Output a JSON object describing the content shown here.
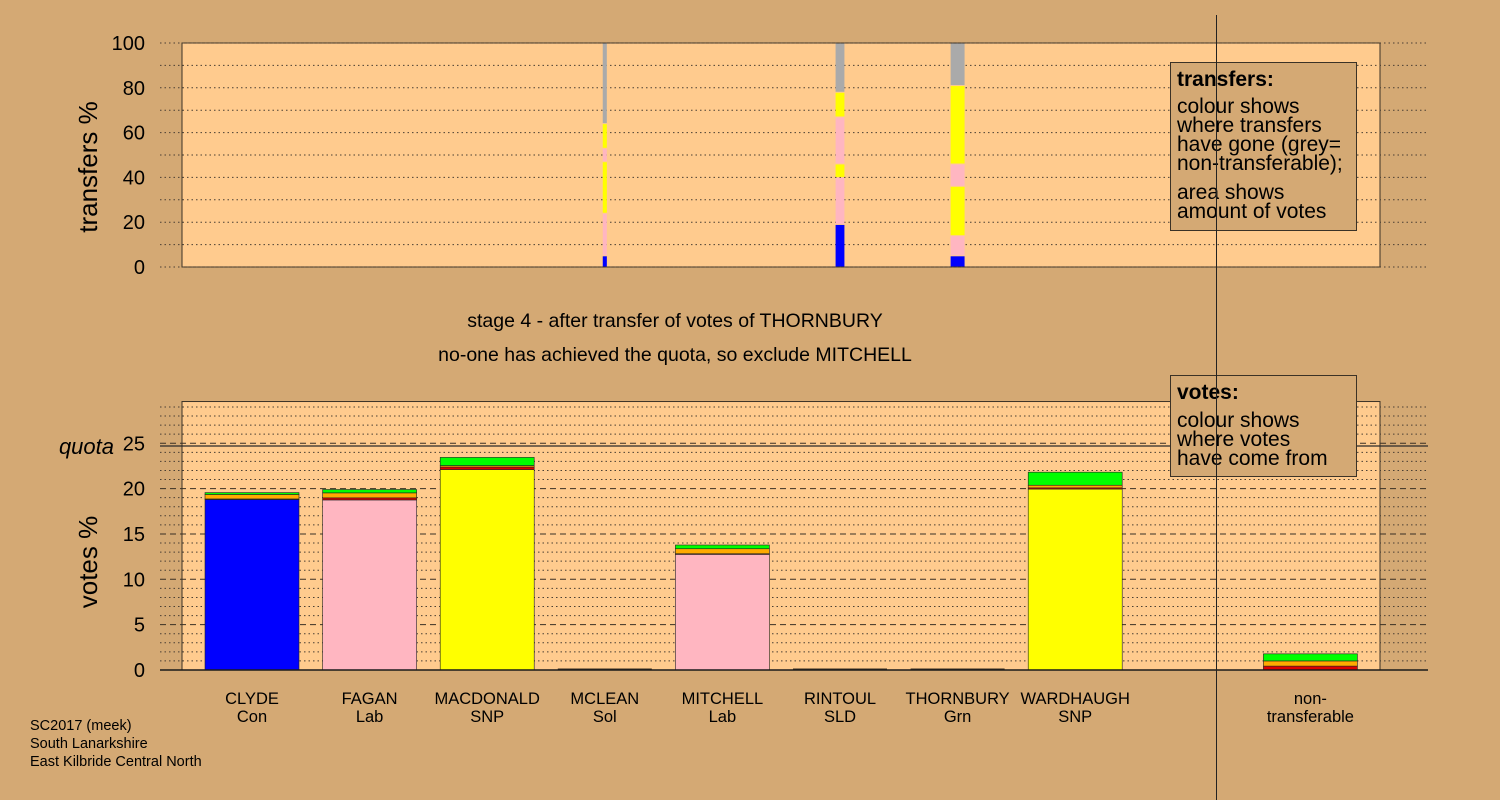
{
  "colors": {
    "background": "#d4a974",
    "plot_area": "#ffcb8e"
  },
  "page": {
    "stage_title": "stage 4 - after transfer of votes of THORNBURY",
    "stage_decision": "no-one has achieved the quota, so exclude MITCHELL",
    "footer": [
      "SC2017 (meek)",
      "South Lanarkshire",
      "East Kilbride Central North"
    ]
  },
  "legend_transfers": {
    "title": "transfers:",
    "paragraphs": [
      [
        "colour shows",
        "where transfers",
        "have gone (grey=",
        "non-transferable);"
      ],
      [
        "area shows",
        "amount of votes"
      ]
    ]
  },
  "legend_votes": {
    "title": "votes:",
    "paragraphs": [
      [
        "colour shows",
        "where votes",
        "have come from"
      ]
    ]
  },
  "chart_data": [
    {
      "type": "bar",
      "stacked": true,
      "ylabel": "transfers %",
      "ylim": [
        0,
        100
      ],
      "yticks": [
        0,
        20,
        40,
        60,
        80,
        100
      ],
      "grid": true,
      "transfers": [
        {
          "category_index": 3,
          "amount_votes_pct": 1.2,
          "segments": [
            {
              "color": "#0000ff",
              "value": 5
            },
            {
              "color": "#ffb6c1",
              "value": 19
            },
            {
              "color": "#ffff00",
              "value": 23
            },
            {
              "color": "#ffb6c1",
              "value": 6
            },
            {
              "color": "#ffff00",
              "value": 11
            },
            {
              "color": "#aaaaaa",
              "value": 36
            }
          ]
        },
        {
          "category_index": 5,
          "amount_votes_pct": 2.6,
          "segments": [
            {
              "color": "#0000ff",
              "value": 19
            },
            {
              "color": "#ffb6c1",
              "value": 21
            },
            {
              "color": "#ffff00",
              "value": 6
            },
            {
              "color": "#ffb6c1",
              "value": 21
            },
            {
              "color": "#ffff00",
              "value": 11
            },
            {
              "color": "#aaaaaa",
              "value": 22
            }
          ]
        },
        {
          "category_index": 6,
          "amount_votes_pct": 4.1,
          "segments": [
            {
              "color": "#0000ff",
              "value": 5
            },
            {
              "color": "#ffb6c1",
              "value": 9
            },
            {
              "color": "#ffff00",
              "value": 22
            },
            {
              "color": "#ffb6c1",
              "value": 10
            },
            {
              "color": "#ffff00",
              "value": 35
            },
            {
              "color": "#aaaaaa",
              "value": 19
            }
          ]
        }
      ]
    },
    {
      "type": "bar",
      "stacked": true,
      "ylabel": "votes %",
      "ylim": [
        0,
        29.6
      ],
      "yticks": [
        0,
        5,
        10,
        15,
        20,
        25
      ],
      "grid": true,
      "quota": 24.7,
      "quota_label": "quota",
      "categories": [
        {
          "label": [
            "CLYDE",
            "Con"
          ],
          "segments": [
            {
              "color": "#0000ff",
              "value": 18.8
            },
            {
              "color": "#dd0000",
              "value": 0.06
            },
            {
              "color": "#ffaa00",
              "value": 0.49
            },
            {
              "color": "#00ff00",
              "value": 0.21
            }
          ]
        },
        {
          "label": [
            "FAGAN",
            "Lab"
          ],
          "segments": [
            {
              "color": "#ffb6c1",
              "value": 18.75
            },
            {
              "color": "#dd0000",
              "value": 0.23
            },
            {
              "color": "#ffaa00",
              "value": 0.55
            },
            {
              "color": "#00ff00",
              "value": 0.37
            }
          ]
        },
        {
          "label": [
            "MACDONALD",
            "SNP"
          ],
          "segments": [
            {
              "color": "#ffff00",
              "value": 22.1
            },
            {
              "color": "#dd0000",
              "value": 0.28
            },
            {
              "color": "#ffaa00",
              "value": 0.16
            },
            {
              "color": "#00ff00",
              "value": 0.9
            }
          ]
        },
        {
          "label": [
            "MCLEAN",
            "Sol"
          ],
          "segments": []
        },
        {
          "label": [
            "MITCHELL",
            "Lab"
          ],
          "segments": [
            {
              "color": "#ffb6c1",
              "value": 12.75
            },
            {
              "color": "#dd0000",
              "value": 0.07
            },
            {
              "color": "#ffaa00",
              "value": 0.55
            },
            {
              "color": "#00ff00",
              "value": 0.41
            }
          ]
        },
        {
          "label": [
            "RINTOUL",
            "SLD"
          ],
          "segments": []
        },
        {
          "label": [
            "THORNBURY",
            "Grn"
          ],
          "segments": []
        },
        {
          "label": [
            "WARDHAUGH",
            "SNP"
          ],
          "segments": [
            {
              "color": "#ffff00",
              "value": 19.95
            },
            {
              "color": "#dd0000",
              "value": 0.13
            },
            {
              "color": "#ffaa00",
              "value": 0.29
            },
            {
              "color": "#00ff00",
              "value": 1.44
            }
          ]
        },
        {
          "label": [
            "non-",
            "transferable"
          ],
          "segments": [
            {
              "color": "#dd0000",
              "value": 0.43
            },
            {
              "color": "#ffaa00",
              "value": 0.57
            },
            {
              "color": "#00ff00",
              "value": 0.78
            }
          ]
        }
      ]
    }
  ]
}
